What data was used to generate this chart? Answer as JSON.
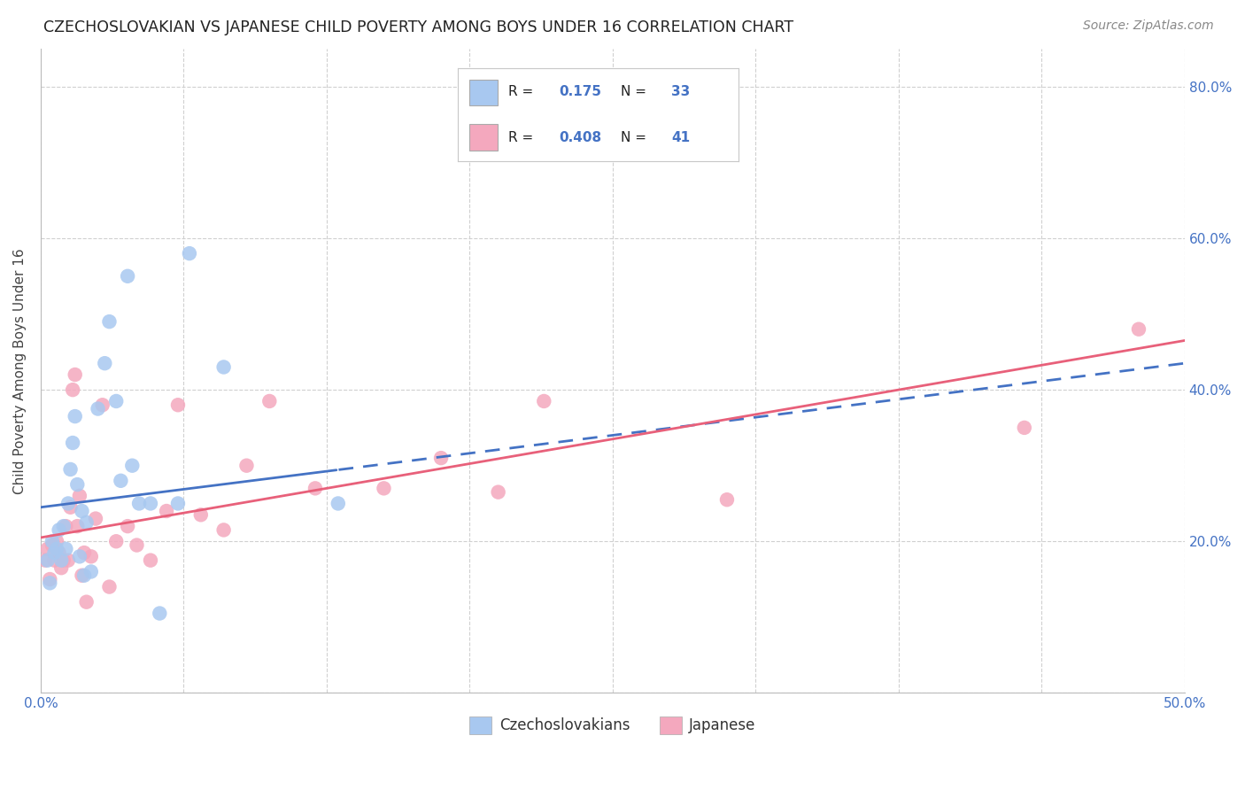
{
  "title": "CZECHOSLOVAKIAN VS JAPANESE CHILD POVERTY AMONG BOYS UNDER 16 CORRELATION CHART",
  "source": "Source: ZipAtlas.com",
  "ylabel": "Child Poverty Among Boys Under 16",
  "x_min": 0.0,
  "x_max": 0.5,
  "y_min": 0.0,
  "y_max": 0.85,
  "x_ticks": [
    0.0,
    0.0625,
    0.125,
    0.1875,
    0.25,
    0.3125,
    0.375,
    0.4375,
    0.5
  ],
  "x_tick_labels_show": {
    "0.0": "0.0%",
    "0.5": "50.0%"
  },
  "y_ticks": [
    0.0,
    0.2,
    0.4,
    0.6,
    0.8
  ],
  "y_tick_labels": [
    "",
    "20.0%",
    "40.0%",
    "60.0%",
    "80.0%"
  ],
  "grid_color": "#d0d0d0",
  "background_color": "#ffffff",
  "czecho_color": "#a8c8f0",
  "japanese_color": "#f4a8be",
  "czecho_line_color": "#4472c4",
  "japanese_line_color": "#e8607a",
  "czecho_R": 0.175,
  "czecho_N": 33,
  "japanese_R": 0.408,
  "japanese_N": 41,
  "legend_czecho": "Czechoslovakians",
  "legend_japanese": "Japanese",
  "czecho_intercept": 0.245,
  "czecho_slope": 0.38,
  "japanese_intercept": 0.205,
  "japanese_slope": 0.52,
  "czecho_x": [
    0.003,
    0.004,
    0.005,
    0.006,
    0.007,
    0.008,
    0.009,
    0.01,
    0.011,
    0.012,
    0.013,
    0.014,
    0.015,
    0.016,
    0.017,
    0.018,
    0.019,
    0.02,
    0.022,
    0.025,
    0.028,
    0.03,
    0.033,
    0.035,
    0.038,
    0.04,
    0.043,
    0.048,
    0.052,
    0.06,
    0.065,
    0.08,
    0.13
  ],
  "czecho_y": [
    0.175,
    0.145,
    0.2,
    0.185,
    0.19,
    0.215,
    0.175,
    0.22,
    0.19,
    0.25,
    0.295,
    0.33,
    0.365,
    0.275,
    0.18,
    0.24,
    0.155,
    0.225,
    0.16,
    0.375,
    0.435,
    0.49,
    0.385,
    0.28,
    0.55,
    0.3,
    0.25,
    0.25,
    0.105,
    0.25,
    0.58,
    0.43,
    0.25
  ],
  "japanese_x": [
    0.002,
    0.003,
    0.004,
    0.005,
    0.006,
    0.007,
    0.008,
    0.009,
    0.01,
    0.011,
    0.012,
    0.013,
    0.014,
    0.015,
    0.016,
    0.017,
    0.018,
    0.019,
    0.02,
    0.022,
    0.024,
    0.027,
    0.03,
    0.033,
    0.038,
    0.042,
    0.048,
    0.055,
    0.06,
    0.07,
    0.08,
    0.09,
    0.1,
    0.12,
    0.15,
    0.175,
    0.2,
    0.22,
    0.3,
    0.43,
    0.48
  ],
  "japanese_y": [
    0.175,
    0.19,
    0.15,
    0.195,
    0.175,
    0.2,
    0.185,
    0.165,
    0.175,
    0.22,
    0.175,
    0.245,
    0.4,
    0.42,
    0.22,
    0.26,
    0.155,
    0.185,
    0.12,
    0.18,
    0.23,
    0.38,
    0.14,
    0.2,
    0.22,
    0.195,
    0.175,
    0.24,
    0.38,
    0.235,
    0.215,
    0.3,
    0.385,
    0.27,
    0.27,
    0.31,
    0.265,
    0.385,
    0.255,
    0.35,
    0.48
  ]
}
